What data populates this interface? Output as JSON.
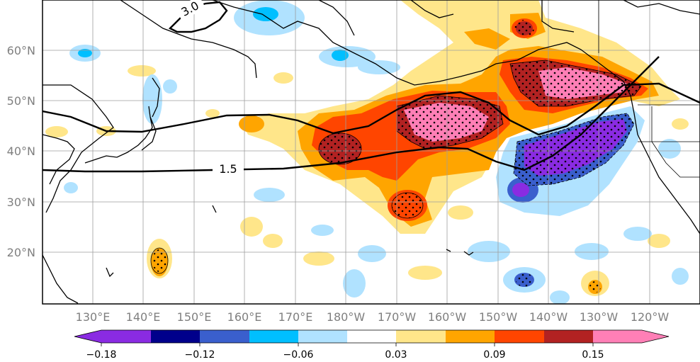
{
  "map": {
    "lat_labels": [
      "60°N",
      "50°N",
      "40°N",
      "30°N",
      "20°N"
    ],
    "lon_labels": [
      "130°E",
      "140°E",
      "150°E",
      "160°E",
      "170°E",
      "180°W",
      "170°W",
      "160°W",
      "150°W",
      "140°W",
      "130°W",
      "120°W"
    ],
    "contour_labels": [
      "1.5",
      "3.0"
    ]
  },
  "colorbar": {
    "tick_labels": [
      "−0.18",
      "−0.12",
      "−0.06",
      "0.03",
      "0.09",
      "0.15"
    ],
    "colors": [
      "#8a2be2",
      "#00008b",
      "#3a5fcd",
      "#00bfff",
      "#b0e2ff",
      "#ffffff",
      "#ffe68a",
      "#ffa500",
      "#ff4500",
      "#b22222",
      "#ff7fb6"
    ]
  }
}
